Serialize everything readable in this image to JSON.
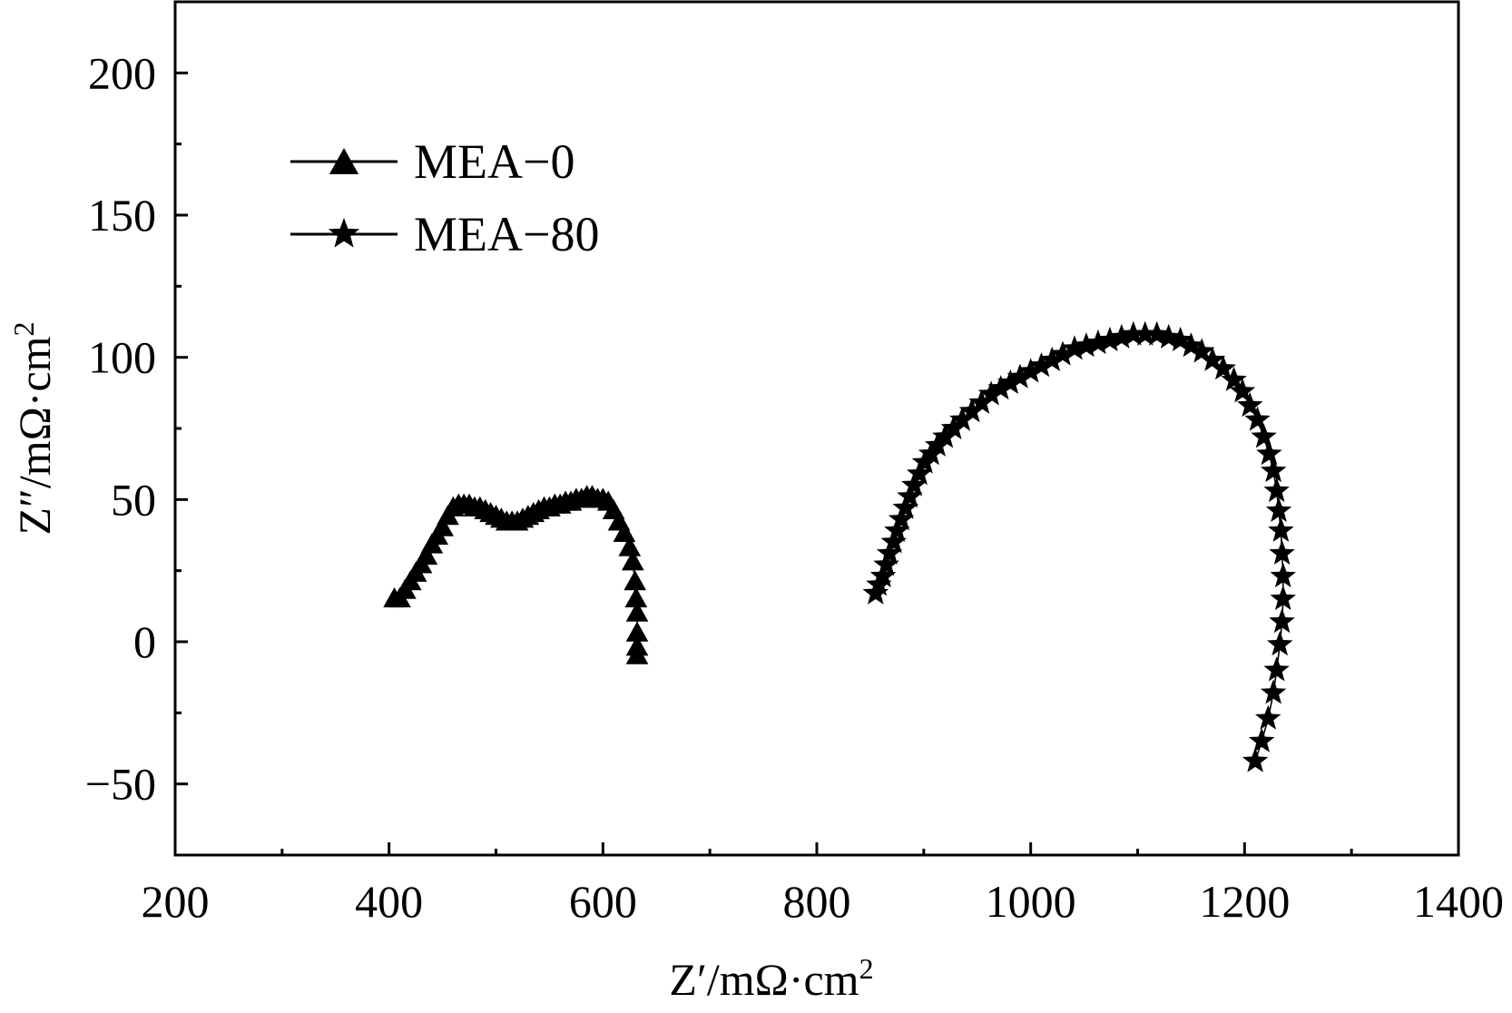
{
  "chart_data": {
    "type": "scatter",
    "xlabel": {
      "main": "Z′/mΩ·cm",
      "sup": "2"
    },
    "ylabel": {
      "main": "Z″/mΩ·cm",
      "sup": "2"
    },
    "xlim": [
      200,
      1400
    ],
    "ylim": [
      -75,
      225
    ],
    "xticks": [
      200,
      400,
      600,
      800,
      1000,
      1200,
      1400
    ],
    "yticks": [
      -50,
      0,
      50,
      100,
      150,
      200
    ],
    "xtick_labels": [
      "200",
      "400",
      "600",
      "800",
      "1000",
      "1200",
      "1400"
    ],
    "ytick_labels": [
      "−50",
      "0",
      "50",
      "100",
      "150",
      "200"
    ],
    "grid": false,
    "legend_position": "top-left",
    "series": [
      {
        "name": "MEA−0",
        "marker": "triangle",
        "x": [
          405,
          410,
          415,
          420,
          425,
          430,
          435,
          440,
          445,
          450,
          455,
          460,
          465,
          470,
          475,
          480,
          485,
          490,
          495,
          500,
          505,
          510,
          515,
          520,
          525,
          530,
          535,
          540,
          545,
          550,
          555,
          560,
          565,
          570,
          575,
          580,
          585,
          590,
          595,
          600,
          605,
          610,
          615,
          620,
          625,
          628,
          630,
          631,
          632,
          632,
          632,
          632
        ],
        "y": [
          15,
          15,
          18,
          21,
          24,
          27,
          30,
          34,
          37,
          40,
          44,
          47,
          48,
          48,
          48,
          47,
          47,
          46,
          45,
          44,
          43,
          42,
          42,
          42,
          43,
          44,
          45,
          46,
          47,
          47,
          48,
          48,
          49,
          49,
          50,
          50,
          51,
          51,
          50,
          50,
          49,
          46,
          42,
          38,
          33,
          28,
          21,
          15,
          10,
          3,
          -2,
          -5
        ]
      },
      {
        "name": "MEA−80",
        "marker": "star",
        "x": [
          855,
          858,
          862,
          865,
          868,
          872,
          875,
          879,
          883,
          887,
          891,
          896,
          901,
          907,
          913,
          920,
          928,
          936,
          945,
          954,
          963,
          972,
          981,
          990,
          1000,
          1010,
          1020,
          1030,
          1041,
          1052,
          1063,
          1074,
          1085,
          1096,
          1107,
          1118,
          1129,
          1140,
          1150,
          1160,
          1170,
          1180,
          1190,
          1198,
          1205,
          1212,
          1218,
          1223,
          1227,
          1230,
          1232,
          1234,
          1235,
          1236,
          1236,
          1235,
          1233,
          1230,
          1227,
          1222,
          1216,
          1210
        ],
        "y": [
          17,
          20,
          23,
          27,
          31,
          35,
          39,
          43,
          47,
          51,
          55,
          59,
          63,
          66,
          69,
          72,
          75,
          78,
          81,
          84,
          87,
          89,
          91,
          93,
          95,
          97,
          99,
          101,
          103,
          104,
          105,
          106,
          107,
          108,
          108,
          108,
          107,
          106,
          104,
          102,
          99,
          96,
          92,
          88,
          83,
          78,
          72,
          66,
          60,
          53,
          46,
          39,
          31,
          23,
          15,
          7,
          -1,
          -10,
          -18,
          -27,
          -35,
          -42
        ]
      }
    ]
  }
}
